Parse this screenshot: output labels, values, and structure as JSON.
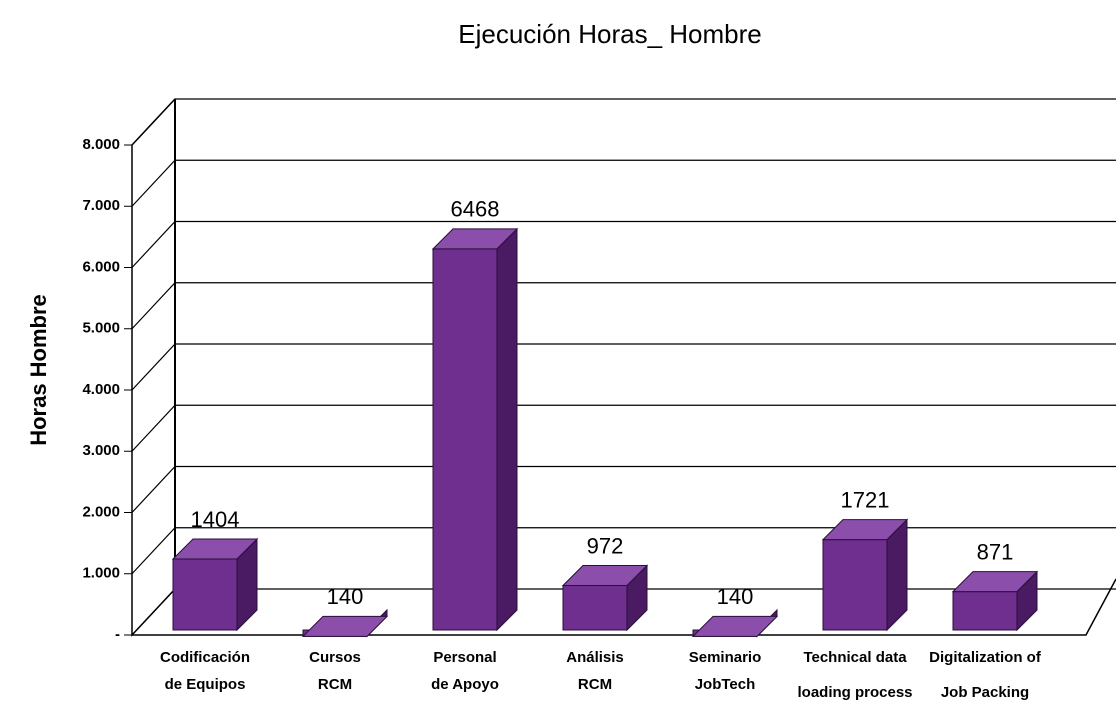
{
  "chart_data": {
    "type": "bar3d",
    "title": "Ejecución Horas_ Hombre",
    "ylabel": "Horas Hombre",
    "categories": [
      [
        "Codificación",
        "de Equipos"
      ],
      [
        "Cursos",
        "RCM"
      ],
      [
        "Personal",
        "de Apoyo"
      ],
      [
        "Análisis",
        "RCM"
      ],
      [
        "Seminario",
        "JobTech"
      ],
      [
        "Technical data",
        "loading process"
      ],
      [
        "Digitalization of",
        "Job Packing"
      ]
    ],
    "values": [
      1404,
      140,
      6468,
      972,
      140,
      1721,
      871
    ],
    "color": "#6e2f8e",
    "ylim": [
      0,
      8000
    ],
    "yticks": [
      {
        "value": 0,
        "label": "-"
      },
      {
        "value": 1000,
        "label": "1.000"
      },
      {
        "value": 2000,
        "label": "2.000"
      },
      {
        "value": 3000,
        "label": "3.000"
      },
      {
        "value": 4000,
        "label": "4.000"
      },
      {
        "value": 5000,
        "label": "5.000"
      },
      {
        "value": 6000,
        "label": "6.000"
      },
      {
        "value": 7000,
        "label": "7.000"
      },
      {
        "value": 8000,
        "label": "8.000"
      }
    ],
    "grid": true
  }
}
